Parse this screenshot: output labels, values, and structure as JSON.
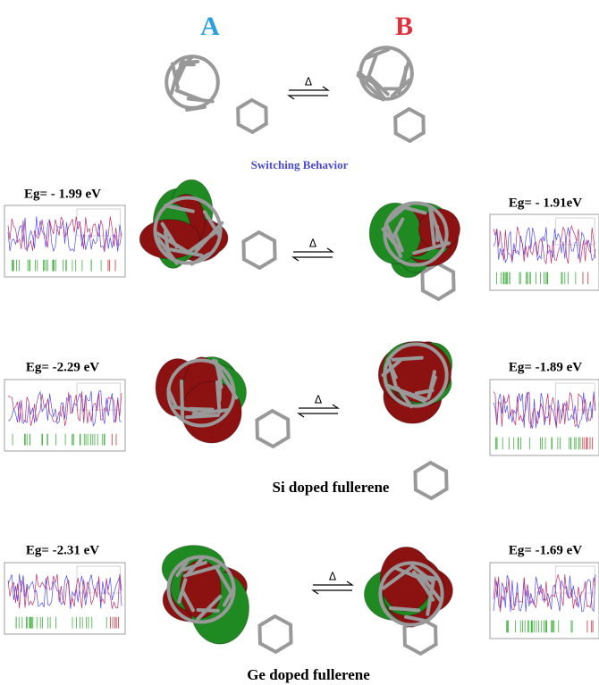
{
  "header": {
    "label_a": "A",
    "label_b": "B",
    "arrow_label": "Δ"
  },
  "caption": "Switching Behavior",
  "rows": [
    {
      "arrow_label": "Δ",
      "left_gap": "Eg= - 1.99 eV",
      "right_gap": "Eg= - 1.91eV"
    },
    {
      "arrow_label": "Δ",
      "left_gap": "Eg= -2.29 eV",
      "right_gap": "Eg= -1.89 eV",
      "caption": "Si doped fullerene"
    },
    {
      "arrow_label": "Δ",
      "left_gap": "Eg= -2.31 eV",
      "right_gap": "Eg= -1.69 eV",
      "caption": "Ge doped fullerene"
    }
  ]
}
